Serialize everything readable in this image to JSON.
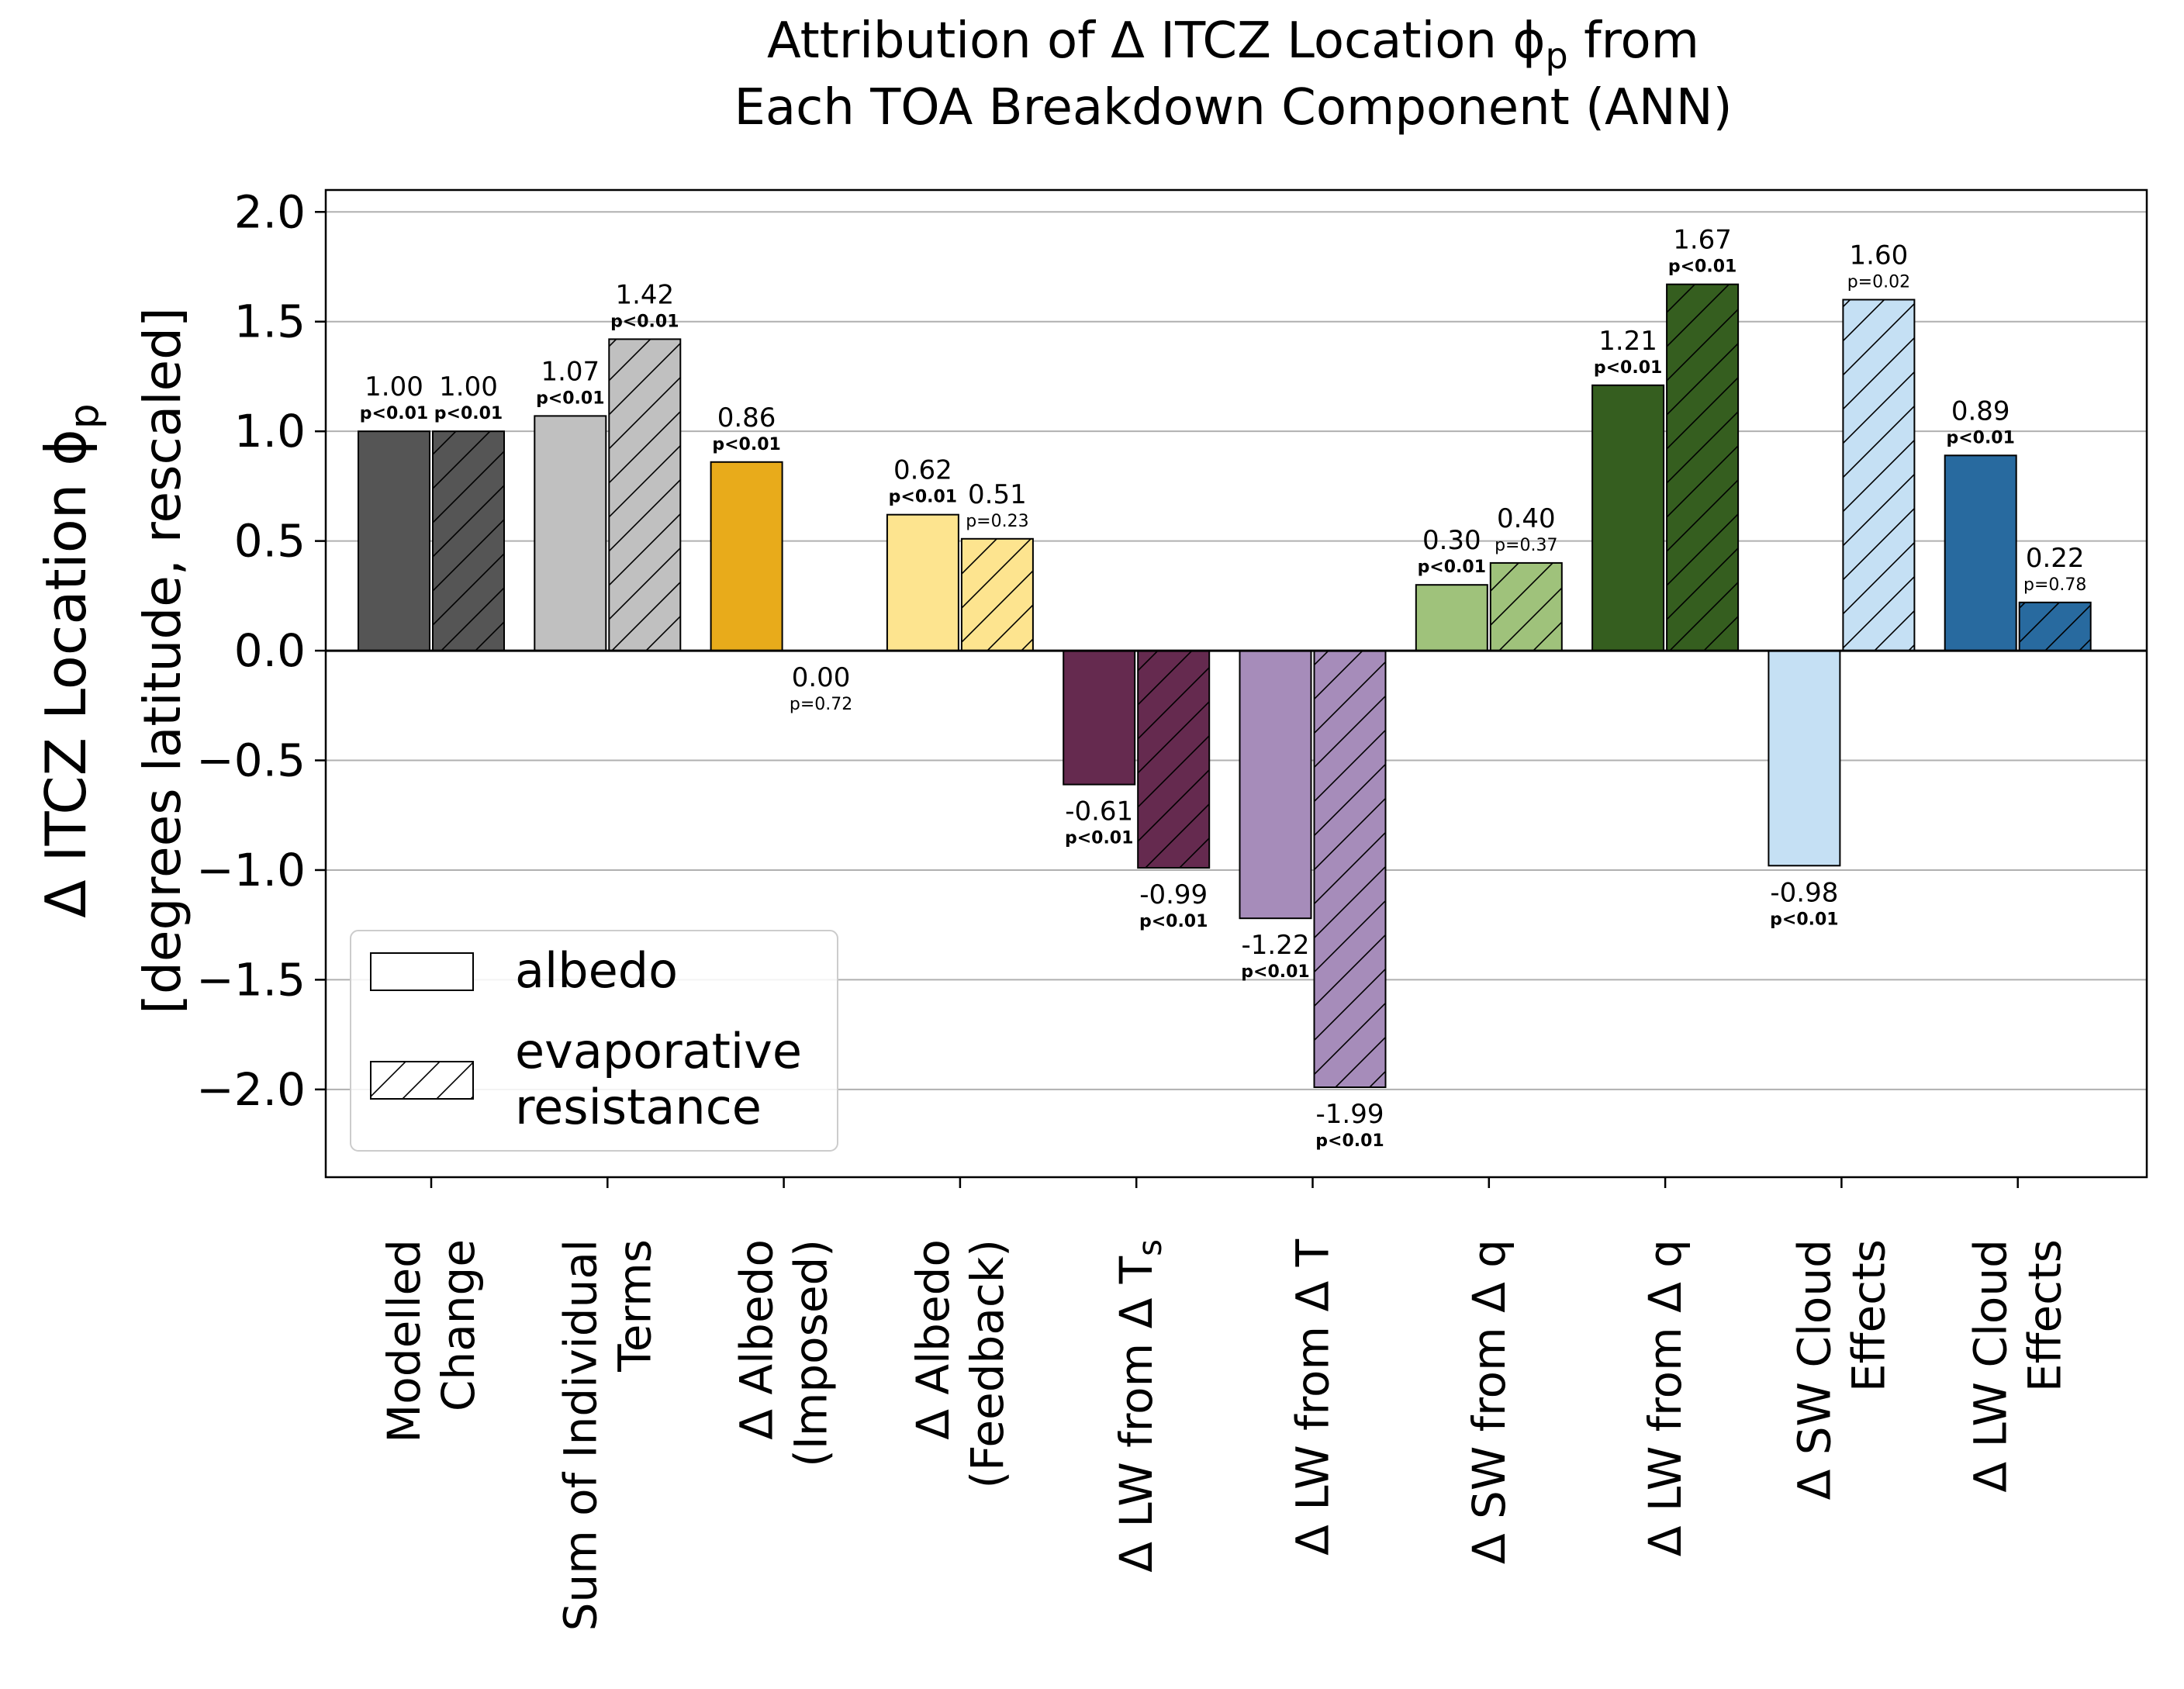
{
  "chart_data": {
    "type": "bar",
    "title_line1": "Attribution of Δ ITCZ Location ϕ",
    "title_sub": "p",
    "title_line1_end": " from",
    "title_line2": "Each TOA Breakdown Component (ANN)",
    "ylabel_line1": "Δ ITCZ Location ϕ",
    "ylabel_sub": "p",
    "ylabel_line2": "[degrees latitude, rescaled]",
    "ylim": [
      -2.4,
      2.1
    ],
    "yticks": [
      "2.0",
      "1.5",
      "1.0",
      "0.5",
      "0.0",
      "−0.5",
      "−1.0",
      "−1.5",
      "−2.0"
    ],
    "ytick_values": [
      2.0,
      1.5,
      1.0,
      0.5,
      0.0,
      -0.5,
      -1.0,
      -1.5,
      -2.0
    ],
    "grid": true,
    "legend": {
      "placement": "lower-left",
      "entries": [
        {
          "label_lines": [
            "albedo"
          ],
          "hatch": false
        },
        {
          "label_lines": [
            "evaporative",
            "resistance"
          ],
          "hatch": true
        }
      ]
    },
    "categories": [
      {
        "lines": [
          "Modelled",
          "Change"
        ],
        "sub": ""
      },
      {
        "lines": [
          "Sum of Individual",
          "Terms"
        ],
        "sub": ""
      },
      {
        "lines": [
          "Δ Albedo",
          "(Imposed)"
        ],
        "sub": ""
      },
      {
        "lines": [
          "Δ Albedo",
          "(Feedback)"
        ],
        "sub": ""
      },
      {
        "lines": [
          "Δ LW from Δ T"
        ],
        "sub": "s"
      },
      {
        "lines": [
          "Δ LW from Δ T"
        ],
        "sub": ""
      },
      {
        "lines": [
          "Δ SW from Δ q"
        ],
        "sub": ""
      },
      {
        "lines": [
          "Δ LW from Δ q"
        ],
        "sub": ""
      },
      {
        "lines": [
          "Δ SW Cloud",
          "Effects"
        ],
        "sub": ""
      },
      {
        "lines": [
          "Δ LW Cloud",
          "Effects"
        ],
        "sub": ""
      }
    ],
    "colors": [
      "#555555",
      "#c0c0c0",
      "#e8ab1b",
      "#fde48f",
      "#652a4f",
      "#a68cba",
      "#9fc27b",
      "#355e1f",
      "#c5e0f4",
      "#286a9f"
    ],
    "series": [
      {
        "name": "albedo",
        "hatch": false,
        "values": [
          1.0,
          1.07,
          0.86,
          0.62,
          -0.61,
          -1.22,
          0.3,
          1.21,
          -0.98,
          0.89
        ],
        "value_labels": [
          "1.00",
          "1.07",
          "0.86",
          "0.62",
          "-0.61",
          "-1.22",
          "0.30",
          "1.21",
          "-0.98",
          "0.89"
        ],
        "p_labels": [
          "p<0.01",
          "p<0.01",
          "p<0.01",
          "p<0.01",
          "p<0.01",
          "p<0.01",
          "p<0.01",
          "p<0.01",
          "p<0.01",
          "p<0.01"
        ]
      },
      {
        "name": "evaporative resistance",
        "hatch": true,
        "values": [
          1.0,
          1.42,
          0.0,
          0.51,
          -0.99,
          -1.99,
          0.4,
          1.67,
          1.6,
          0.22
        ],
        "value_labels": [
          "1.00",
          "1.42",
          "0.00",
          "0.51",
          "-0.99",
          "-1.99",
          "0.40",
          "1.67",
          "1.60",
          "0.22"
        ],
        "p_labels": [
          "p<0.01",
          "p<0.01",
          "p=0.72",
          "p=0.23",
          "p<0.01",
          "p<0.01",
          "p=0.37",
          "p<0.01",
          "p=0.02",
          "p=0.78"
        ]
      }
    ]
  }
}
